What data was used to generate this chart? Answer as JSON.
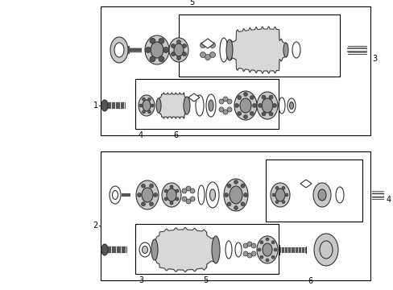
{
  "bg_color": "#ffffff",
  "fig_width": 4.89,
  "fig_height": 3.6,
  "dpi": 100,
  "part_color": "#333333",
  "box_color": "#000000",
  "line_width": 0.8,
  "label_fontsize": 7.0,
  "gray_light": "#c8c8c8",
  "gray_mid": "#999999",
  "gray_dark": "#555555"
}
